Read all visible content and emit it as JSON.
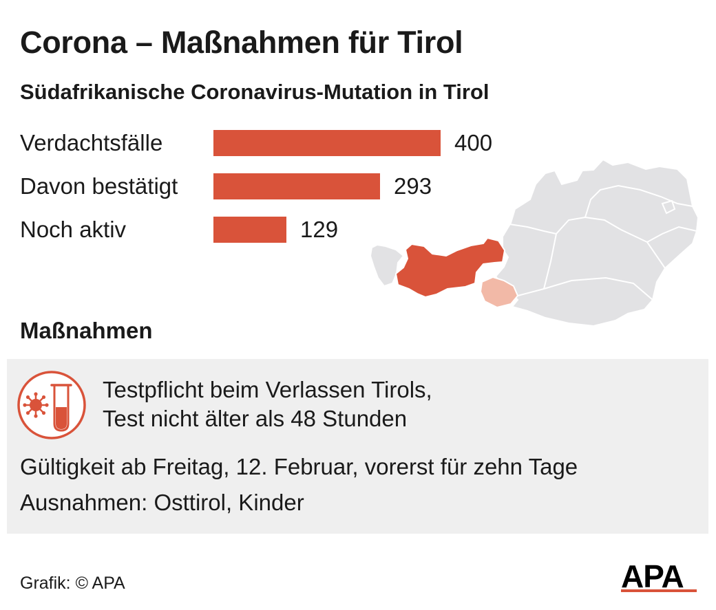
{
  "header": {
    "title": "Corona – Maßnahmen für Tirol"
  },
  "chart_data": {
    "type": "bar",
    "title": "Südafrikanische Coronavirus-Mutation in Tirol",
    "categories": [
      "Verdachtsfälle",
      "Davon bestätigt",
      "Noch aktiv"
    ],
    "values": [
      400,
      293,
      129
    ],
    "bar_color": "#d9533a",
    "orientation": "horizontal",
    "data_labels": true
  },
  "map": {
    "highlight_color": "#d9533a",
    "secondary_color": "#f2b9a7",
    "base_color": "#e2e2e4",
    "border_color": "#ffffff"
  },
  "measures": {
    "heading": "Maßnahmen",
    "icon": "test-tube-virus-icon",
    "test_line_1": "Testpflicht beim Verlassen Tirols,",
    "test_line_2": "Test nicht älter als 48 Stunden",
    "validity": "Gültigkeit ab Freitag, 12. Februar, vorerst für zehn Tage",
    "exceptions": "Ausnahmen: Osttirol, Kinder",
    "box_color": "#efefef",
    "icon_color": "#d9533a"
  },
  "footer": {
    "credit": "Grafik: © APA",
    "logo_text": "APA",
    "logo_color": "#000000",
    "logo_accent": "#d9533a"
  }
}
